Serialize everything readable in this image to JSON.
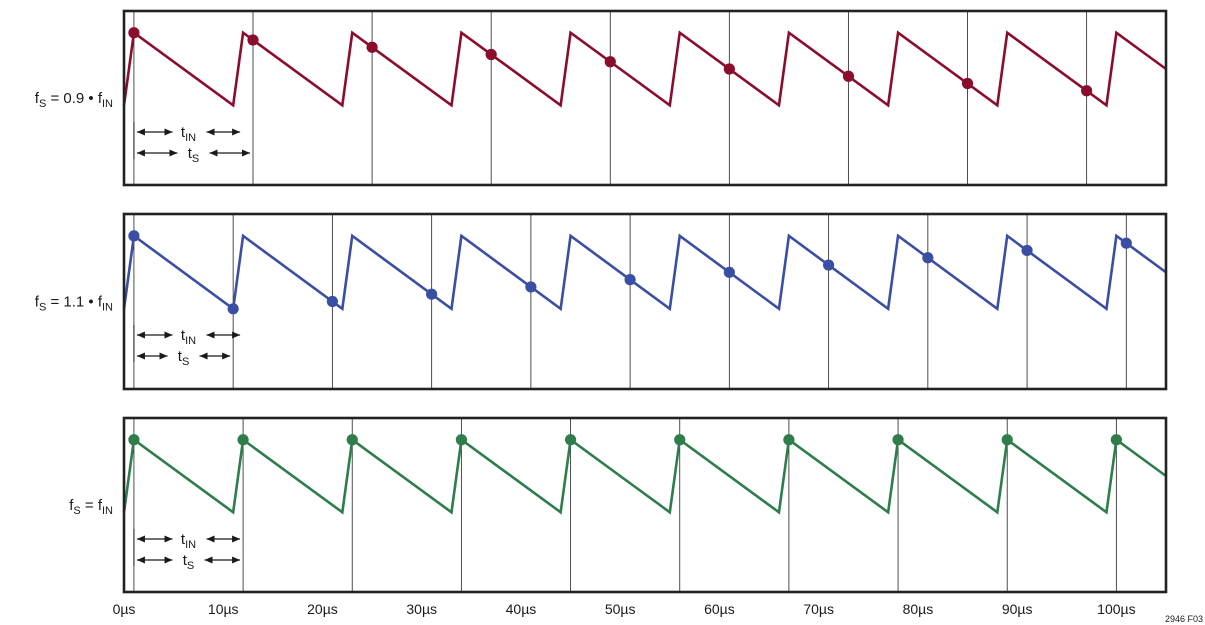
{
  "chart_data": {
    "type": "line",
    "figure_id": "2946 F03",
    "x_unit": "µs",
    "x_range": [
      0,
      105
    ],
    "x_ticks": [
      {
        "value": 0,
        "label": "0µs"
      },
      {
        "value": 10,
        "label": "10µs"
      },
      {
        "value": 20,
        "label": "20µs"
      },
      {
        "value": 30,
        "label": "30µs"
      },
      {
        "value": 40,
        "label": "40µs"
      },
      {
        "value": 50,
        "label": "50µs"
      },
      {
        "value": 60,
        "label": "60µs"
      },
      {
        "value": 70,
        "label": "70µs"
      },
      {
        "value": 80,
        "label": "80µs"
      },
      {
        "value": 90,
        "label": "90µs"
      },
      {
        "value": 100,
        "label": "100µs"
      }
    ],
    "waveform": {
      "period_us": 11,
      "first_peak_us": 1,
      "rise_us": 1,
      "levels": {
        "high": 1.0,
        "low": 0.0
      },
      "y_range": [
        -1.1,
        1.3
      ]
    },
    "panels": [
      {
        "id": "slow",
        "label": {
          "main": "f",
          "sub1": "S",
          "mid": " = 0.9 • f",
          "sub2": "IN"
        },
        "color": "#8b0d2d",
        "ts_us": 12,
        "sample_times_us": [
          1,
          13,
          25,
          37,
          49,
          61,
          73,
          85,
          97
        ],
        "annotation": {
          "tin_label": "t",
          "tin_sub": "IN",
          "ts_label": "t",
          "ts_sub": "S"
        }
      },
      {
        "id": "fast",
        "label": {
          "main": "f",
          "sub1": "S",
          "mid": " = 1.1 • f",
          "sub2": "IN"
        },
        "color": "#3a4fa3",
        "ts_us": 10,
        "sample_times_us": [
          1,
          11,
          21,
          31,
          41,
          51,
          61,
          71,
          81,
          91,
          101
        ],
        "annotation": {
          "tin_label": "t",
          "tin_sub": "IN",
          "ts_label": "t",
          "ts_sub": "S"
        }
      },
      {
        "id": "equal",
        "label": {
          "main": "f",
          "sub1": "S",
          "mid": " = f",
          "sub2": "IN"
        },
        "color": "#2e7d4a",
        "ts_us": 11,
        "sample_times_us": [
          1,
          12,
          23,
          34,
          45,
          56,
          67,
          78,
          89,
          100
        ],
        "annotation": {
          "tin_label": "t",
          "tin_sub": "IN",
          "ts_label": "t",
          "ts_sub": "S"
        }
      }
    ]
  }
}
